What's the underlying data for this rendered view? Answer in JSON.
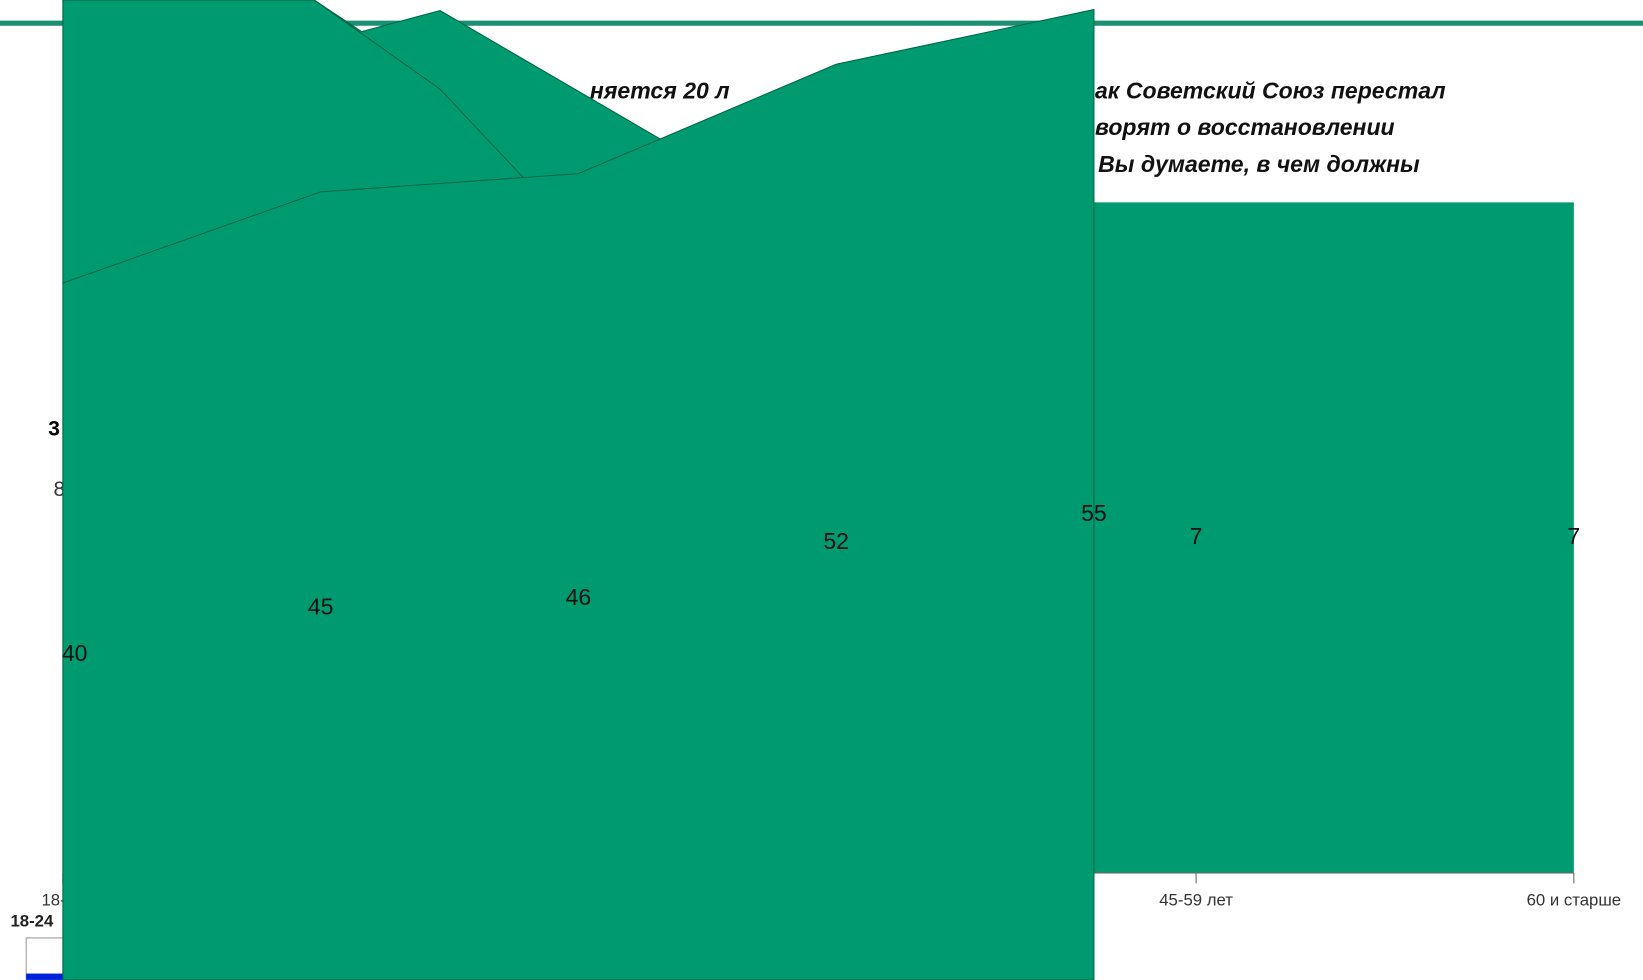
{
  "title_fragments": [
    "няется 20 л",
    "ак Советский Союз перестал",
    "ворят о восстановлении",
    "Вы думаете, в чем должны"
  ],
  "axis_fragments": [
    "3",
    "8"
  ],
  "legend_fragment": "18-24",
  "chart_data": [
    {
      "type": "area",
      "categories": [
        "18-24",
        null,
        null,
        "45-59 лет",
        "60 и старше"
      ],
      "values": [
        null,
        null,
        null,
        7,
        7
      ],
      "color": "#009a70"
    },
    {
      "type": "area",
      "values": [
        40,
        45,
        46,
        52,
        55
      ],
      "color": "#009a70"
    }
  ]
}
